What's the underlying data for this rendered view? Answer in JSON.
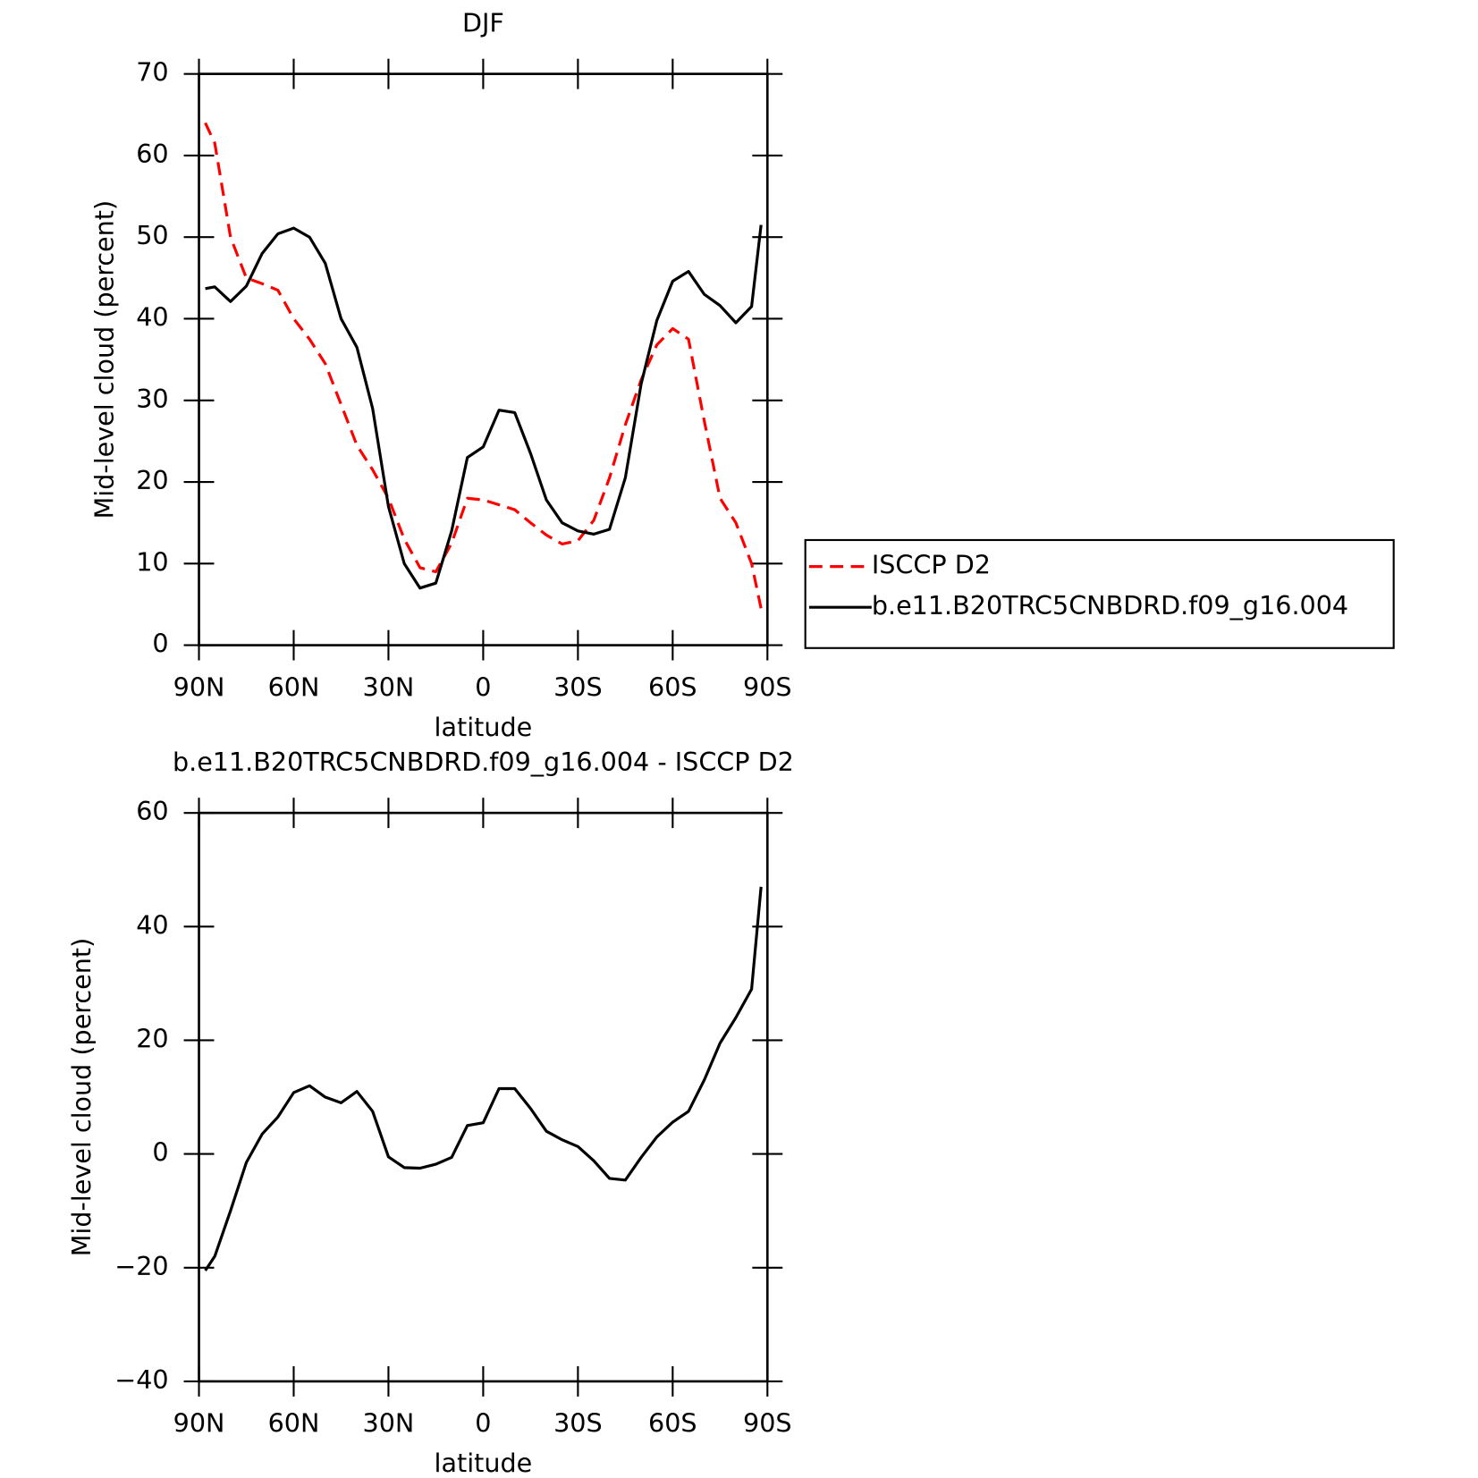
{
  "chart_data": [
    {
      "type": "line",
      "title": "DJF",
      "xlabel": "latitude",
      "ylabel": "Mid-level cloud (percent)",
      "xlim": [
        90,
        -90
      ],
      "xticks": [
        {
          "value": 90,
          "label": "90N"
        },
        {
          "value": 60,
          "label": "60N"
        },
        {
          "value": 30,
          "label": "30N"
        },
        0,
        {
          "value": -30,
          "label": "30S"
        },
        {
          "value": -60,
          "label": "60S"
        },
        {
          "value": -90,
          "label": "90S"
        }
      ],
      "ylim": [
        0,
        70
      ],
      "yticks": [
        0,
        10,
        20,
        30,
        40,
        50,
        60,
        70
      ],
      "legend": "right",
      "x": [
        88,
        85,
        80,
        75,
        70,
        65,
        60,
        55,
        50,
        45,
        40,
        35,
        30,
        25,
        20,
        15,
        10,
        5,
        0,
        -5,
        -10,
        -15,
        -20,
        -25,
        -30,
        -35,
        -40,
        -45,
        -50,
        -55,
        -60,
        -65,
        -70,
        -75,
        -80,
        -85,
        -88
      ],
      "series": [
        {
          "name": "ISCCP D2",
          "color": "#ff0000",
          "linestyle": "dashed",
          "values": [
            64,
            61.5,
            50,
            45,
            44.3,
            43.5,
            40,
            37.5,
            34.5,
            29.5,
            24.5,
            21.5,
            18,
            13,
            9.5,
            9,
            12.5,
            18,
            17.8,
            17.2,
            16.6,
            15,
            13.5,
            12.4,
            12.8,
            15.3,
            20.5,
            27,
            32.5,
            36.8,
            38.8,
            37.5,
            27.5,
            18,
            15,
            10,
            4.5
          ]
        },
        {
          "name": "b.e11.B20TRC5CNBDRD.f09_g16.004",
          "color": "#000000",
          "linestyle": "solid",
          "values": [
            43.7,
            43.9,
            42.1,
            44,
            48,
            50.4,
            51.1,
            50,
            46.8,
            40,
            36.5,
            29,
            17,
            10,
            7,
            7.6,
            14,
            23,
            24.3,
            28.8,
            28.5,
            23.5,
            17.8,
            15,
            14,
            13.6,
            14.2,
            20.5,
            32,
            39.8,
            44.6,
            45.8,
            43,
            41.6,
            39.5,
            41.5,
            51.5
          ]
        }
      ]
    },
    {
      "type": "line",
      "title": "b.e11.B20TRC5CNBDRD.f09_g16.004 - ISCCP D2",
      "xlabel": "latitude",
      "ylabel": "Mid-level cloud (percent)",
      "xlim": [
        90,
        -90
      ],
      "xticks": [
        {
          "value": 90,
          "label": "90N"
        },
        {
          "value": 60,
          "label": "60N"
        },
        {
          "value": 30,
          "label": "30N"
        },
        0,
        {
          "value": -30,
          "label": "30S"
        },
        {
          "value": -60,
          "label": "60S"
        },
        {
          "value": -90,
          "label": "90S"
        }
      ],
      "ylim": [
        -40,
        60
      ],
      "yticks": [
        {
          "value": -40,
          "label": "−40"
        },
        {
          "value": -20,
          "label": "−20"
        },
        0,
        20,
        40,
        60
      ],
      "x": [
        88,
        85,
        80,
        75,
        70,
        65,
        60,
        55,
        50,
        45,
        40,
        35,
        30,
        25,
        20,
        15,
        10,
        5,
        0,
        -5,
        -10,
        -15,
        -20,
        -25,
        -30,
        -35,
        -40,
        -45,
        -50,
        -55,
        -60,
        -65,
        -70,
        -75,
        -80,
        -85,
        -88
      ],
      "series": [
        {
          "color": "#000000",
          "linestyle": "solid",
          "values": [
            -20.5,
            -18,
            -10,
            -1.5,
            3.5,
            6.5,
            10.8,
            12,
            10,
            9,
            11,
            7.5,
            -0.5,
            -2.4,
            -2.5,
            -1.8,
            -0.6,
            5,
            5.5,
            11.5,
            11.5,
            8,
            4,
            2.5,
            1.3,
            -1.2,
            -4.3,
            -4.6,
            -0.6,
            3,
            5.6,
            7.5,
            13,
            19.5,
            24,
            29,
            47
          ]
        }
      ]
    }
  ]
}
